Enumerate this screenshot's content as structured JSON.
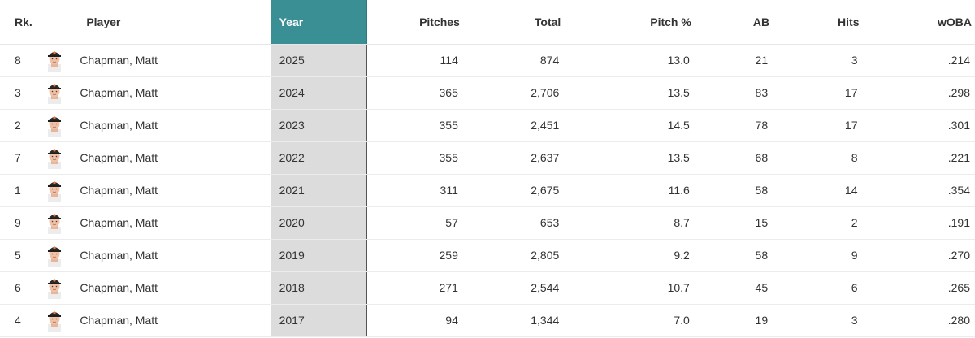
{
  "colors": {
    "year_header_bg": "#3a8f94",
    "year_cell_bg": "#dcdcdc",
    "cap": "#2a2a2a",
    "logo": "#f2752b"
  },
  "headers": {
    "rank": "Rk.",
    "player": "Player",
    "year": "Year",
    "pitches": "Pitches",
    "total": "Total",
    "pitch_pct": "Pitch %",
    "ab": "AB",
    "hits": "Hits",
    "woba": "wOBA"
  },
  "rows": [
    {
      "rank": "8",
      "avatar_icon": "player-headshot-icon",
      "player": "Chapman, Matt",
      "year": "2025",
      "pitches": "114",
      "total": "874",
      "pitch_pct": "13.0",
      "ab": "21",
      "hits": "3",
      "woba": ".214"
    },
    {
      "rank": "3",
      "avatar_icon": "player-headshot-icon",
      "player": "Chapman, Matt",
      "year": "2024",
      "pitches": "365",
      "total": "2,706",
      "pitch_pct": "13.5",
      "ab": "83",
      "hits": "17",
      "woba": ".298"
    },
    {
      "rank": "2",
      "avatar_icon": "player-headshot-icon",
      "player": "Chapman, Matt",
      "year": "2023",
      "pitches": "355",
      "total": "2,451",
      "pitch_pct": "14.5",
      "ab": "78",
      "hits": "17",
      "woba": ".301"
    },
    {
      "rank": "7",
      "avatar_icon": "player-headshot-icon",
      "player": "Chapman, Matt",
      "year": "2022",
      "pitches": "355",
      "total": "2,637",
      "pitch_pct": "13.5",
      "ab": "68",
      "hits": "8",
      "woba": ".221"
    },
    {
      "rank": "1",
      "avatar_icon": "player-headshot-icon",
      "player": "Chapman, Matt",
      "year": "2021",
      "pitches": "311",
      "total": "2,675",
      "pitch_pct": "11.6",
      "ab": "58",
      "hits": "14",
      "woba": ".354"
    },
    {
      "rank": "9",
      "avatar_icon": "player-headshot-icon",
      "player": "Chapman, Matt",
      "year": "2020",
      "pitches": "57",
      "total": "653",
      "pitch_pct": "8.7",
      "ab": "15",
      "hits": "2",
      "woba": ".191"
    },
    {
      "rank": "5",
      "avatar_icon": "player-headshot-icon",
      "player": "Chapman, Matt",
      "year": "2019",
      "pitches": "259",
      "total": "2,805",
      "pitch_pct": "9.2",
      "ab": "58",
      "hits": "9",
      "woba": ".270"
    },
    {
      "rank": "6",
      "avatar_icon": "player-headshot-icon",
      "player": "Chapman, Matt",
      "year": "2018",
      "pitches": "271",
      "total": "2,544",
      "pitch_pct": "10.7",
      "ab": "45",
      "hits": "6",
      "woba": ".265"
    },
    {
      "rank": "4",
      "avatar_icon": "player-headshot-icon",
      "player": "Chapman, Matt",
      "year": "2017",
      "pitches": "94",
      "total": "1,344",
      "pitch_pct": "7.0",
      "ab": "19",
      "hits": "3",
      "woba": ".280"
    }
  ]
}
